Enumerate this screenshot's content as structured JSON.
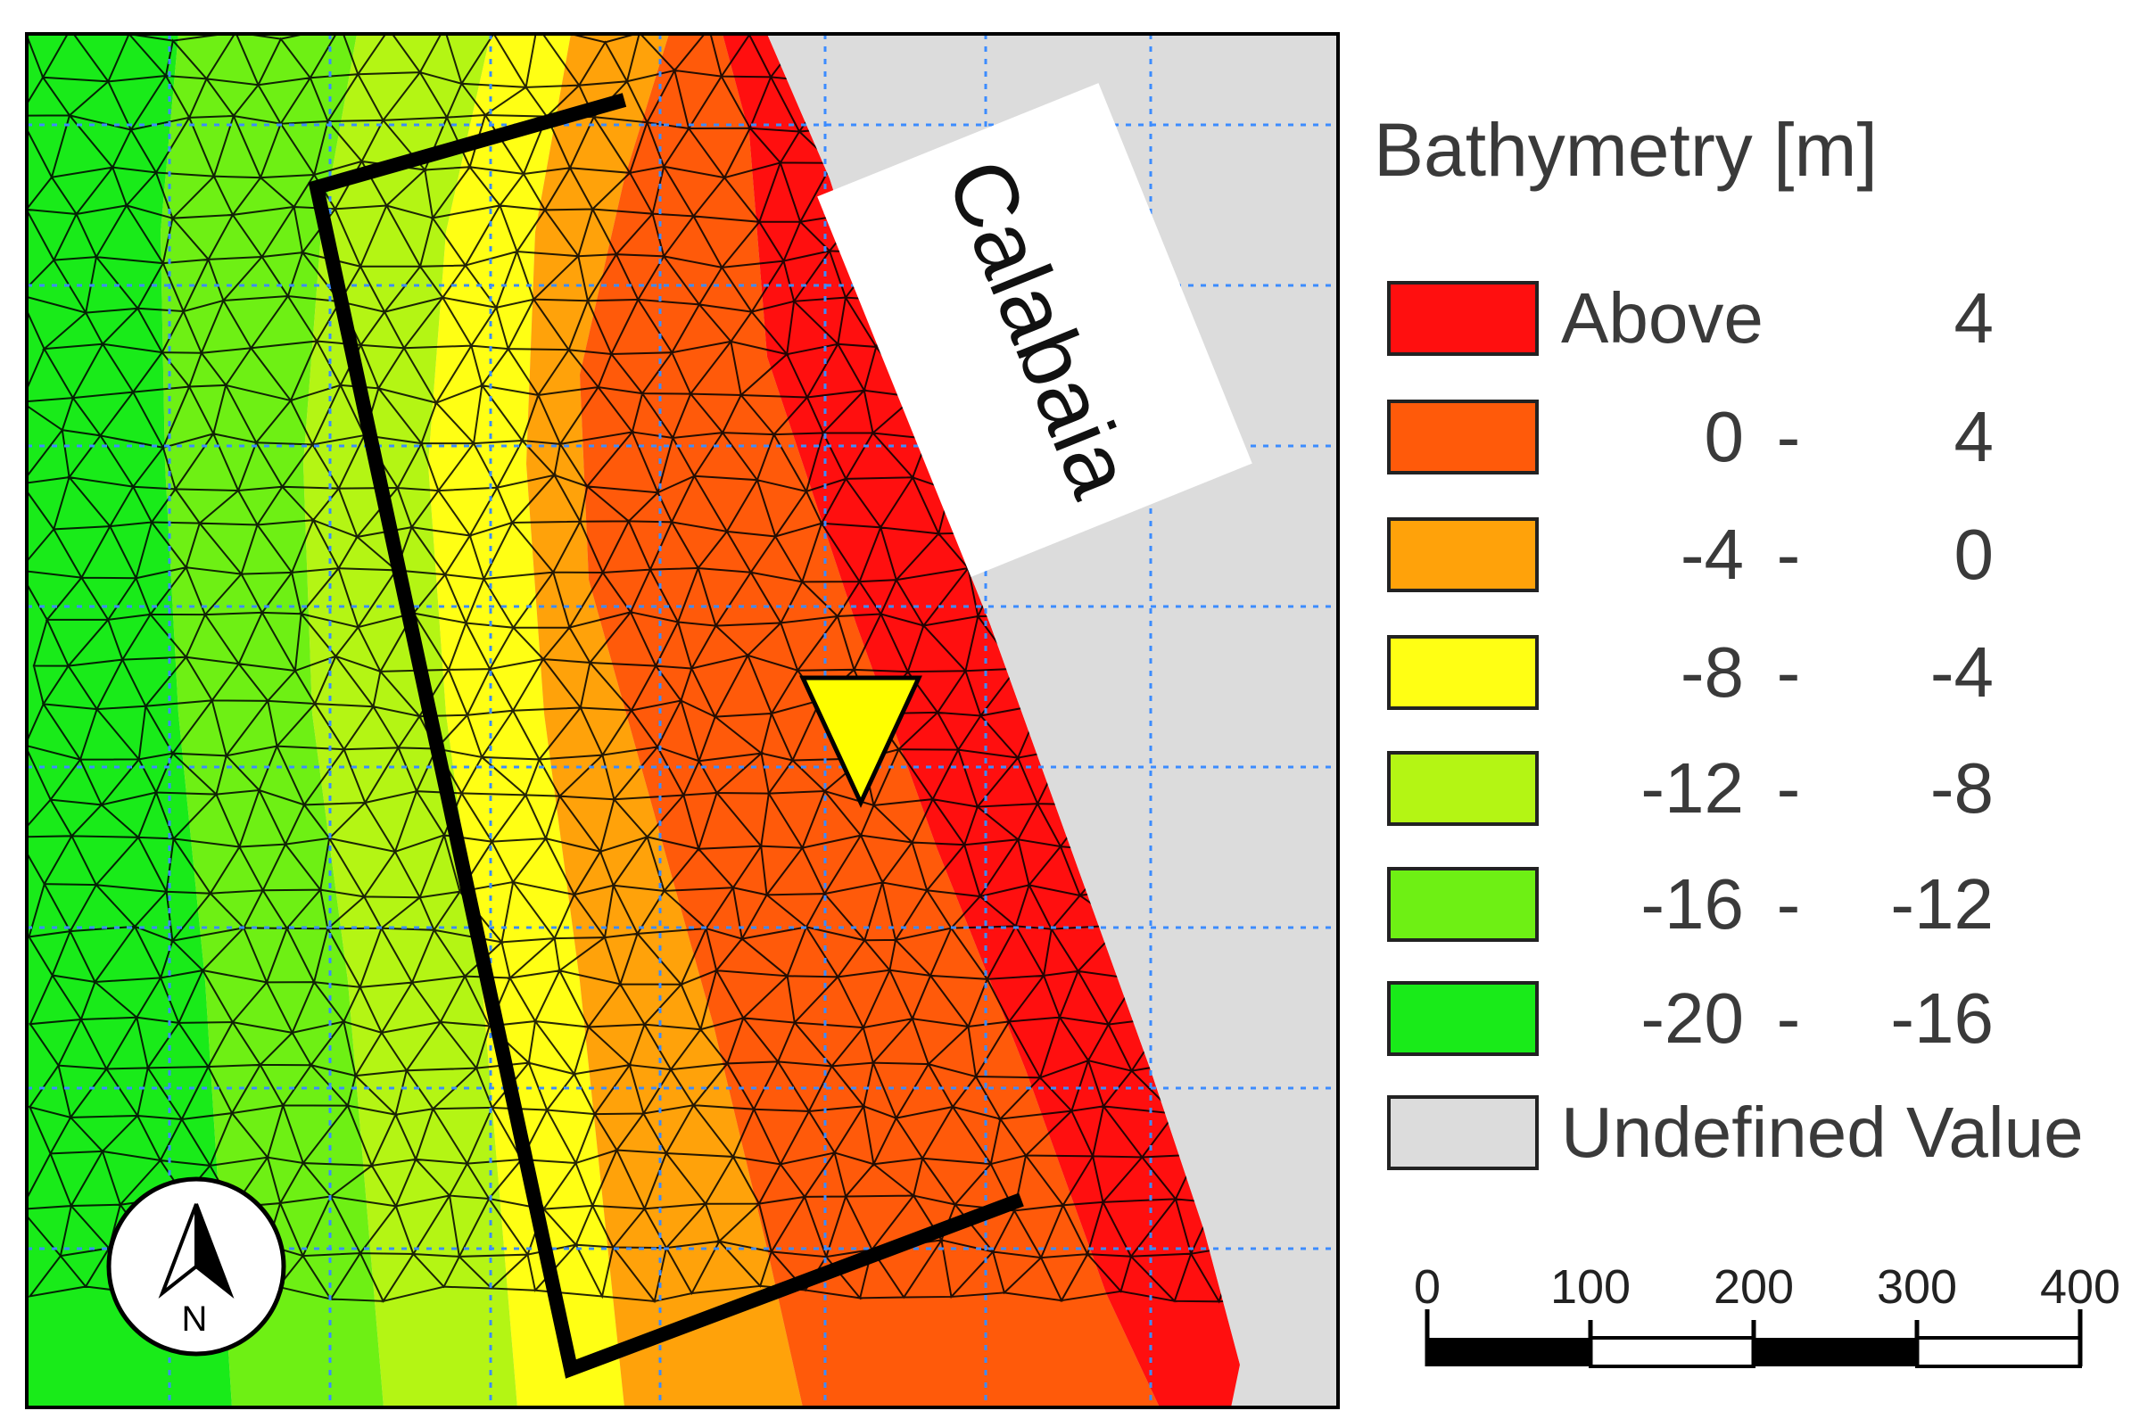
{
  "map": {
    "place_label": "Calabaia",
    "north_arrow_label": "N",
    "colors": {
      "above4": "#ff0f0f",
      "r0_4": "#ff5a0a",
      "rm4_0": "#ffa20a",
      "rm8_m4": "#ffff14",
      "rm12_m8": "#b4f514",
      "rm16_m12": "#6ef014",
      "rm20_m16": "#19eb19",
      "undefined": "#dcdcdc",
      "marker": "#ffff00",
      "grid": "#3c8cff",
      "outline": "#000000"
    }
  },
  "legend": {
    "title": "Bathymetry [m]",
    "rows": [
      {
        "from": "Above",
        "dash": "",
        "to": "4",
        "color": "#ff0f0f"
      },
      {
        "from": "0",
        "dash": "-",
        "to": "4",
        "color": "#ff5a0a"
      },
      {
        "from": "-4",
        "dash": "-",
        "to": "0",
        "color": "#ffa20a"
      },
      {
        "from": "-8",
        "dash": "-",
        "to": "-4",
        "color": "#ffff14"
      },
      {
        "from": "-12",
        "dash": "-",
        "to": "-8",
        "color": "#b4f514"
      },
      {
        "from": "-16",
        "dash": "-",
        "to": "-12",
        "color": "#6ef014"
      },
      {
        "from": "-20",
        "dash": "-",
        "to": "-16",
        "color": "#19eb19"
      },
      {
        "from": "Undefined Value",
        "dash": "",
        "to": "",
        "color": "#dcdcdc"
      }
    ]
  },
  "scale_bar": {
    "ticks": [
      "0",
      "100",
      "200",
      "300",
      "400"
    ]
  }
}
